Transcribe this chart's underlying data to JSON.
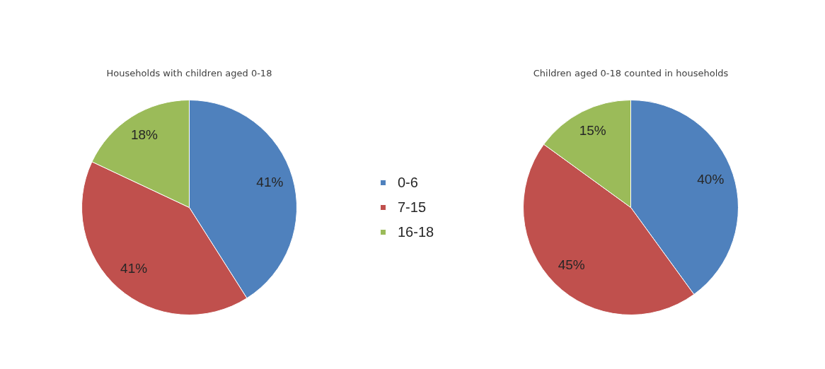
{
  "chart_data": [
    {
      "type": "pie",
      "title": "Households with children aged 0-18",
      "categories": [
        "0-6",
        "7-15",
        "16-18"
      ],
      "values": [
        41,
        41,
        18
      ],
      "colors": [
        "#4f81bd",
        "#c0504d",
        "#9bbb59"
      ],
      "value_labels": [
        "41%",
        "41%",
        "18%"
      ],
      "legend": "right"
    },
    {
      "type": "pie",
      "title": "Children aged 0-18 counted in households",
      "categories": [
        null,
        null,
        null
      ],
      "values": [
        40,
        45,
        15
      ],
      "colors": [
        "#4f81bd",
        "#c0504d",
        "#9bbb59"
      ],
      "value_labels": [
        "40%",
        "45%",
        "15%"
      ]
    }
  ]
}
